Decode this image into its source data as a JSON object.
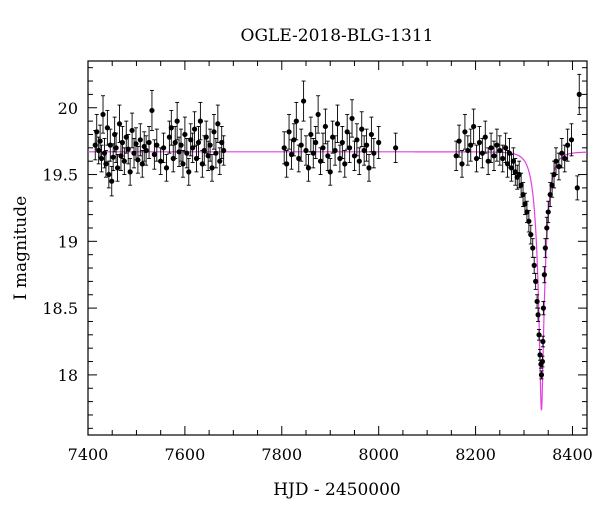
{
  "chart_data": {
    "type": "scatter",
    "title": "OGLE-2018-BLG-1311",
    "xlabel": "HJD - 2450000",
    "ylabel": "I magnitude",
    "xlim": [
      7400,
      8430
    ],
    "ylim": [
      20.35,
      17.55
    ],
    "y_inverted": true,
    "x_ticks": [
      7400,
      7600,
      7800,
      8000,
      8200,
      8400
    ],
    "y_ticks": [
      18,
      18.5,
      19,
      19.5,
      20
    ],
    "x_tick_labels": [
      "7400",
      "7600",
      "7800",
      "8000",
      "8200",
      "8400"
    ],
    "y_tick_labels": [
      "18",
      "18.5",
      "19",
      "19.5",
      "20"
    ],
    "grid": false,
    "colors": {
      "points": "#000000",
      "model": "#e040e0",
      "axes": "#000000"
    },
    "model": {
      "name": "",
      "baseline_mag": 19.67,
      "t0": 8336,
      "tE": 18,
      "u0": 0.17,
      "x_range": [
        7400,
        8430
      ]
    },
    "series": [
      {
        "points": [
          {
            "x": 7415,
            "y": 19.72,
            "e": 0.11
          },
          {
            "x": 7418,
            "y": 19.82,
            "e": 0.13
          },
          {
            "x": 7422,
            "y": 19.68,
            "e": 0.1
          },
          {
            "x": 7425,
            "y": 19.75,
            "e": 0.12
          },
          {
            "x": 7428,
            "y": 19.62,
            "e": 0.1
          },
          {
            "x": 7431,
            "y": 19.95,
            "e": 0.14
          },
          {
            "x": 7434,
            "y": 19.66,
            "e": 0.11
          },
          {
            "x": 7437,
            "y": 19.58,
            "e": 0.1
          },
          {
            "x": 7440,
            "y": 19.85,
            "e": 0.13
          },
          {
            "x": 7443,
            "y": 19.5,
            "e": 0.1
          },
          {
            "x": 7446,
            "y": 19.72,
            "e": 0.12
          },
          {
            "x": 7449,
            "y": 19.45,
            "e": 0.11
          },
          {
            "x": 7452,
            "y": 19.63,
            "e": 0.1
          },
          {
            "x": 7455,
            "y": 19.8,
            "e": 0.13
          },
          {
            "x": 7458,
            "y": 19.7,
            "e": 0.11
          },
          {
            "x": 7461,
            "y": 19.55,
            "e": 0.1
          },
          {
            "x": 7465,
            "y": 19.88,
            "e": 0.14
          },
          {
            "x": 7468,
            "y": 19.64,
            "e": 0.11
          },
          {
            "x": 7471,
            "y": 19.74,
            "e": 0.12
          },
          {
            "x": 7475,
            "y": 19.6,
            "e": 0.1
          },
          {
            "x": 7479,
            "y": 19.78,
            "e": 0.12
          },
          {
            "x": 7483,
            "y": 19.69,
            "e": 0.11
          },
          {
            "x": 7487,
            "y": 19.52,
            "e": 0.1
          },
          {
            "x": 7491,
            "y": 19.83,
            "e": 0.13
          },
          {
            "x": 7495,
            "y": 19.66,
            "e": 0.11
          },
          {
            "x": 7499,
            "y": 19.73,
            "e": 0.12
          },
          {
            "x": 7503,
            "y": 19.61,
            "e": 0.1
          },
          {
            "x": 7508,
            "y": 19.76,
            "e": 0.12
          },
          {
            "x": 7512,
            "y": 19.58,
            "e": 0.1
          },
          {
            "x": 7516,
            "y": 19.71,
            "e": 0.11
          },
          {
            "x": 7520,
            "y": 19.68,
            "e": 0.11
          },
          {
            "x": 7526,
            "y": 19.74,
            "e": 0.12
          },
          {
            "x": 7532,
            "y": 19.98,
            "e": 0.15
          },
          {
            "x": 7537,
            "y": 19.65,
            "e": 0.11
          },
          {
            "x": 7542,
            "y": 19.72,
            "e": 0.12
          },
          {
            "x": 7550,
            "y": 19.6,
            "e": 0.1
          },
          {
            "x": 7556,
            "y": 19.7,
            "e": 0.11
          },
          {
            "x": 7562,
            "y": 19.55,
            "e": 0.1
          },
          {
            "x": 7568,
            "y": 19.78,
            "e": 0.12
          },
          {
            "x": 7572,
            "y": 19.85,
            "e": 0.13
          },
          {
            "x": 7576,
            "y": 19.62,
            "e": 0.1
          },
          {
            "x": 7580,
            "y": 19.74,
            "e": 0.12
          },
          {
            "x": 7584,
            "y": 19.9,
            "e": 0.14
          },
          {
            "x": 7588,
            "y": 19.67,
            "e": 0.11
          },
          {
            "x": 7592,
            "y": 19.72,
            "e": 0.12
          },
          {
            "x": 7596,
            "y": 19.58,
            "e": 0.1
          },
          {
            "x": 7600,
            "y": 19.8,
            "e": 0.13
          },
          {
            "x": 7604,
            "y": 19.66,
            "e": 0.11
          },
          {
            "x": 7608,
            "y": 19.52,
            "e": 0.1
          },
          {
            "x": 7612,
            "y": 19.76,
            "e": 0.12
          },
          {
            "x": 7616,
            "y": 19.7,
            "e": 0.11
          },
          {
            "x": 7620,
            "y": 19.84,
            "e": 0.13
          },
          {
            "x": 7624,
            "y": 19.62,
            "e": 0.1
          },
          {
            "x": 7628,
            "y": 19.74,
            "e": 0.12
          },
          {
            "x": 7632,
            "y": 19.9,
            "e": 0.14
          },
          {
            "x": 7636,
            "y": 19.58,
            "e": 0.1
          },
          {
            "x": 7640,
            "y": 19.68,
            "e": 0.11
          },
          {
            "x": 7644,
            "y": 19.78,
            "e": 0.12
          },
          {
            "x": 7648,
            "y": 19.64,
            "e": 0.11
          },
          {
            "x": 7652,
            "y": 19.72,
            "e": 0.12
          },
          {
            "x": 7656,
            "y": 19.55,
            "e": 0.1
          },
          {
            "x": 7660,
            "y": 19.82,
            "e": 0.13
          },
          {
            "x": 7664,
            "y": 19.66,
            "e": 0.11
          },
          {
            "x": 7668,
            "y": 19.88,
            "e": 0.14
          },
          {
            "x": 7672,
            "y": 19.6,
            "e": 0.1
          },
          {
            "x": 7676,
            "y": 19.74,
            "e": 0.12
          },
          {
            "x": 7680,
            "y": 19.68,
            "e": 0.11
          },
          {
            "x": 7805,
            "y": 19.7,
            "e": 0.12
          },
          {
            "x": 7810,
            "y": 19.58,
            "e": 0.1
          },
          {
            "x": 7815,
            "y": 19.82,
            "e": 0.13
          },
          {
            "x": 7820,
            "y": 19.65,
            "e": 0.11
          },
          {
            "x": 7825,
            "y": 19.76,
            "e": 0.12
          },
          {
            "x": 7830,
            "y": 19.9,
            "e": 0.14
          },
          {
            "x": 7835,
            "y": 19.62,
            "e": 0.1
          },
          {
            "x": 7840,
            "y": 19.72,
            "e": 0.12
          },
          {
            "x": 7845,
            "y": 20.05,
            "e": 0.15
          },
          {
            "x": 7850,
            "y": 19.68,
            "e": 0.11
          },
          {
            "x": 7855,
            "y": 19.55,
            "e": 0.1
          },
          {
            "x": 7860,
            "y": 19.8,
            "e": 0.13
          },
          {
            "x": 7865,
            "y": 19.66,
            "e": 0.11
          },
          {
            "x": 7870,
            "y": 19.74,
            "e": 0.12
          },
          {
            "x": 7875,
            "y": 19.95,
            "e": 0.14
          },
          {
            "x": 7880,
            "y": 19.6,
            "e": 0.1
          },
          {
            "x": 7885,
            "y": 19.7,
            "e": 0.11
          },
          {
            "x": 7890,
            "y": 19.86,
            "e": 0.13
          },
          {
            "x": 7895,
            "y": 19.64,
            "e": 0.11
          },
          {
            "x": 7900,
            "y": 19.52,
            "e": 0.1
          },
          {
            "x": 7905,
            "y": 19.78,
            "e": 0.12
          },
          {
            "x": 7910,
            "y": 19.68,
            "e": 0.11
          },
          {
            "x": 7915,
            "y": 19.88,
            "e": 0.14
          },
          {
            "x": 7920,
            "y": 19.62,
            "e": 0.1
          },
          {
            "x": 7925,
            "y": 19.74,
            "e": 0.12
          },
          {
            "x": 7930,
            "y": 19.58,
            "e": 0.1
          },
          {
            "x": 7935,
            "y": 19.82,
            "e": 0.13
          },
          {
            "x": 7940,
            "y": 19.7,
            "e": 0.11
          },
          {
            "x": 7945,
            "y": 19.92,
            "e": 0.14
          },
          {
            "x": 7950,
            "y": 19.64,
            "e": 0.11
          },
          {
            "x": 7955,
            "y": 19.76,
            "e": 0.12
          },
          {
            "x": 7960,
            "y": 19.6,
            "e": 0.1
          },
          {
            "x": 7965,
            "y": 19.84,
            "e": 0.13
          },
          {
            "x": 7970,
            "y": 19.68,
            "e": 0.11
          },
          {
            "x": 7975,
            "y": 19.72,
            "e": 0.12
          },
          {
            "x": 7980,
            "y": 19.55,
            "e": 0.1
          },
          {
            "x": 7985,
            "y": 19.8,
            "e": 0.13
          },
          {
            "x": 7990,
            "y": 19.66,
            "e": 0.11
          },
          {
            "x": 8000,
            "y": 19.74,
            "e": 0.12
          },
          {
            "x": 8035,
            "y": 19.7,
            "e": 0.11
          },
          {
            "x": 8160,
            "y": 19.64,
            "e": 0.11
          },
          {
            "x": 8166,
            "y": 19.75,
            "e": 0.12
          },
          {
            "x": 8172,
            "y": 19.58,
            "e": 0.1
          },
          {
            "x": 8178,
            "y": 19.82,
            "e": 0.13
          },
          {
            "x": 8184,
            "y": 19.68,
            "e": 0.11
          },
          {
            "x": 8190,
            "y": 19.72,
            "e": 0.12
          },
          {
            "x": 8196,
            "y": 19.86,
            "e": 0.13
          },
          {
            "x": 8202,
            "y": 19.62,
            "e": 0.1
          },
          {
            "x": 8208,
            "y": 19.74,
            "e": 0.12
          },
          {
            "x": 8214,
            "y": 19.66,
            "e": 0.11
          },
          {
            "x": 8220,
            "y": 19.78,
            "e": 0.12
          },
          {
            "x": 8226,
            "y": 19.6,
            "e": 0.1
          },
          {
            "x": 8232,
            "y": 19.7,
            "e": 0.11
          },
          {
            "x": 8238,
            "y": 19.64,
            "e": 0.11
          },
          {
            "x": 8244,
            "y": 19.72,
            "e": 0.12
          },
          {
            "x": 8250,
            "y": 19.68,
            "e": 0.11
          },
          {
            "x": 8256,
            "y": 19.62,
            "e": 0.1
          },
          {
            "x": 8262,
            "y": 19.7,
            "e": 0.11
          },
          {
            "x": 8266,
            "y": 19.58,
            "e": 0.1
          },
          {
            "x": 8270,
            "y": 19.66,
            "e": 0.11
          },
          {
            "x": 8274,
            "y": 19.55,
            "e": 0.1
          },
          {
            "x": 8278,
            "y": 19.6,
            "e": 0.1
          },
          {
            "x": 8282,
            "y": 19.52,
            "e": 0.1
          },
          {
            "x": 8286,
            "y": 19.48,
            "e": 0.09
          },
          {
            "x": 8290,
            "y": 19.5,
            "e": 0.1
          },
          {
            "x": 8294,
            "y": 19.42,
            "e": 0.09
          },
          {
            "x": 8298,
            "y": 19.35,
            "e": 0.09
          },
          {
            "x": 8302,
            "y": 19.28,
            "e": 0.08
          },
          {
            "x": 8306,
            "y": 19.22,
            "e": 0.08
          },
          {
            "x": 8310,
            "y": 19.15,
            "e": 0.08
          },
          {
            "x": 8314,
            "y": 19.05,
            "e": 0.07
          },
          {
            "x": 8318,
            "y": 18.95,
            "e": 0.07
          },
          {
            "x": 8321,
            "y": 18.82,
            "e": 0.06
          },
          {
            "x": 8324,
            "y": 18.7,
            "e": 0.06
          },
          {
            "x": 8327,
            "y": 18.55,
            "e": 0.05
          },
          {
            "x": 8329,
            "y": 18.45,
            "e": 0.05
          },
          {
            "x": 8331,
            "y": 18.3,
            "e": 0.04
          },
          {
            "x": 8333,
            "y": 18.15,
            "e": 0.04
          },
          {
            "x": 8335,
            "y": 18.08,
            "e": 0.03
          },
          {
            "x": 8336,
            "y": 18.0,
            "e": 0.03
          },
          {
            "x": 8338,
            "y": 18.1,
            "e": 0.04
          },
          {
            "x": 8339,
            "y": 18.25,
            "e": 0.04
          },
          {
            "x": 8340,
            "y": 18.5,
            "e": 0.05
          },
          {
            "x": 8342,
            "y": 18.75,
            "e": 0.06
          },
          {
            "x": 8344,
            "y": 18.95,
            "e": 0.07
          },
          {
            "x": 8347,
            "y": 19.1,
            "e": 0.08
          },
          {
            "x": 8350,
            "y": 19.22,
            "e": 0.08
          },
          {
            "x": 8354,
            "y": 19.35,
            "e": 0.09
          },
          {
            "x": 8358,
            "y": 19.42,
            "e": 0.09
          },
          {
            "x": 8362,
            "y": 19.5,
            "e": 0.1
          },
          {
            "x": 8366,
            "y": 19.6,
            "e": 0.1
          },
          {
            "x": 8372,
            "y": 19.56,
            "e": 0.1
          },
          {
            "x": 8378,
            "y": 19.66,
            "e": 0.11
          },
          {
            "x": 8384,
            "y": 19.62,
            "e": 0.1
          },
          {
            "x": 8390,
            "y": 19.72,
            "e": 0.12
          },
          {
            "x": 8398,
            "y": 19.76,
            "e": 0.12
          },
          {
            "x": 8410,
            "y": 19.4,
            "e": 0.09
          },
          {
            "x": 8414,
            "y": 20.1,
            "e": 0.15
          }
        ]
      }
    ]
  }
}
